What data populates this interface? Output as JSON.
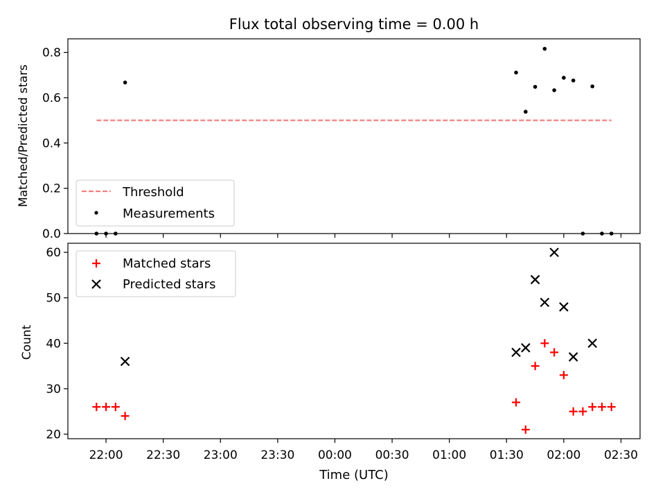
{
  "chart_data": [
    {
      "type": "scatter",
      "title": "Flux total observing time = 0.00 h",
      "xlabel": "",
      "ylabel": "Matched/Predicted stars",
      "ylim": [
        0,
        0.86
      ],
      "yticks": [
        0.0,
        0.2,
        0.4,
        0.6,
        0.8
      ],
      "ytick_labels": [
        "0.0",
        "0.2",
        "0.4",
        "0.6",
        "0.8"
      ],
      "threshold": {
        "name": "Threshold",
        "value": 0.5,
        "x_start": "21:55",
        "x_end": "02:25",
        "color": "#f08080",
        "style": "dashed"
      },
      "series": [
        {
          "name": "Measurements",
          "marker": "dot",
          "color": "#000000",
          "points": [
            {
              "x": "21:55",
              "y": 0.0
            },
            {
              "x": "22:00",
              "y": 0.0
            },
            {
              "x": "22:05",
              "y": 0.0
            },
            {
              "x": "22:10",
              "y": 0.667
            },
            {
              "x": "01:35",
              "y": 0.711
            },
            {
              "x": "01:40",
              "y": 0.538
            },
            {
              "x": "01:45",
              "y": 0.648
            },
            {
              "x": "01:50",
              "y": 0.816
            },
            {
              "x": "01:55",
              "y": 0.633
            },
            {
              "x": "02:00",
              "y": 0.688
            },
            {
              "x": "02:05",
              "y": 0.676
            },
            {
              "x": "02:10",
              "y": 0.0
            },
            {
              "x": "02:15",
              "y": 0.65
            },
            {
              "x": "02:20",
              "y": 0.0
            },
            {
              "x": "02:25",
              "y": 0.0
            }
          ]
        }
      ],
      "legend": {
        "placement": "lower-left",
        "entries": [
          "Threshold",
          "Measurements"
        ]
      },
      "grid": false
    },
    {
      "type": "scatter",
      "title": "",
      "xlabel": "Time (UTC)",
      "ylabel": "Count",
      "ylim": [
        19,
        62
      ],
      "yticks": [
        20,
        30,
        40,
        50,
        60
      ],
      "ytick_labels": [
        "20",
        "30",
        "40",
        "50",
        "60"
      ],
      "x_range": [
        "21:40",
        "02:40"
      ],
      "xticks": [
        "22:00",
        "22:30",
        "23:00",
        "23:30",
        "00:00",
        "00:30",
        "01:00",
        "01:30",
        "02:00",
        "02:30"
      ],
      "series": [
        {
          "name": "Matched stars",
          "marker": "plus",
          "color": "#ff0000",
          "points": [
            {
              "x": "21:55",
              "y": 26
            },
            {
              "x": "22:00",
              "y": 26
            },
            {
              "x": "22:05",
              "y": 26
            },
            {
              "x": "22:10",
              "y": 24
            },
            {
              "x": "01:35",
              "y": 27
            },
            {
              "x": "01:40",
              "y": 21
            },
            {
              "x": "01:45",
              "y": 35
            },
            {
              "x": "01:50",
              "y": 40
            },
            {
              "x": "01:55",
              "y": 38
            },
            {
              "x": "02:00",
              "y": 33
            },
            {
              "x": "02:05",
              "y": 25
            },
            {
              "x": "02:10",
              "y": 25
            },
            {
              "x": "02:15",
              "y": 26
            },
            {
              "x": "02:20",
              "y": 26
            },
            {
              "x": "02:25",
              "y": 26
            }
          ]
        },
        {
          "name": "Predicted stars",
          "marker": "x",
          "color": "#000000",
          "points": [
            {
              "x": "22:10",
              "y": 36
            },
            {
              "x": "01:35",
              "y": 38
            },
            {
              "x": "01:40",
              "y": 39
            },
            {
              "x": "01:45",
              "y": 54
            },
            {
              "x": "01:50",
              "y": 49
            },
            {
              "x": "01:55",
              "y": 60
            },
            {
              "x": "02:00",
              "y": 48
            },
            {
              "x": "02:05",
              "y": 37
            },
            {
              "x": "02:15",
              "y": 40
            }
          ]
        }
      ],
      "legend": {
        "placement": "upper-left",
        "entries": [
          "Matched stars",
          "Predicted stars"
        ]
      },
      "grid": false
    }
  ]
}
